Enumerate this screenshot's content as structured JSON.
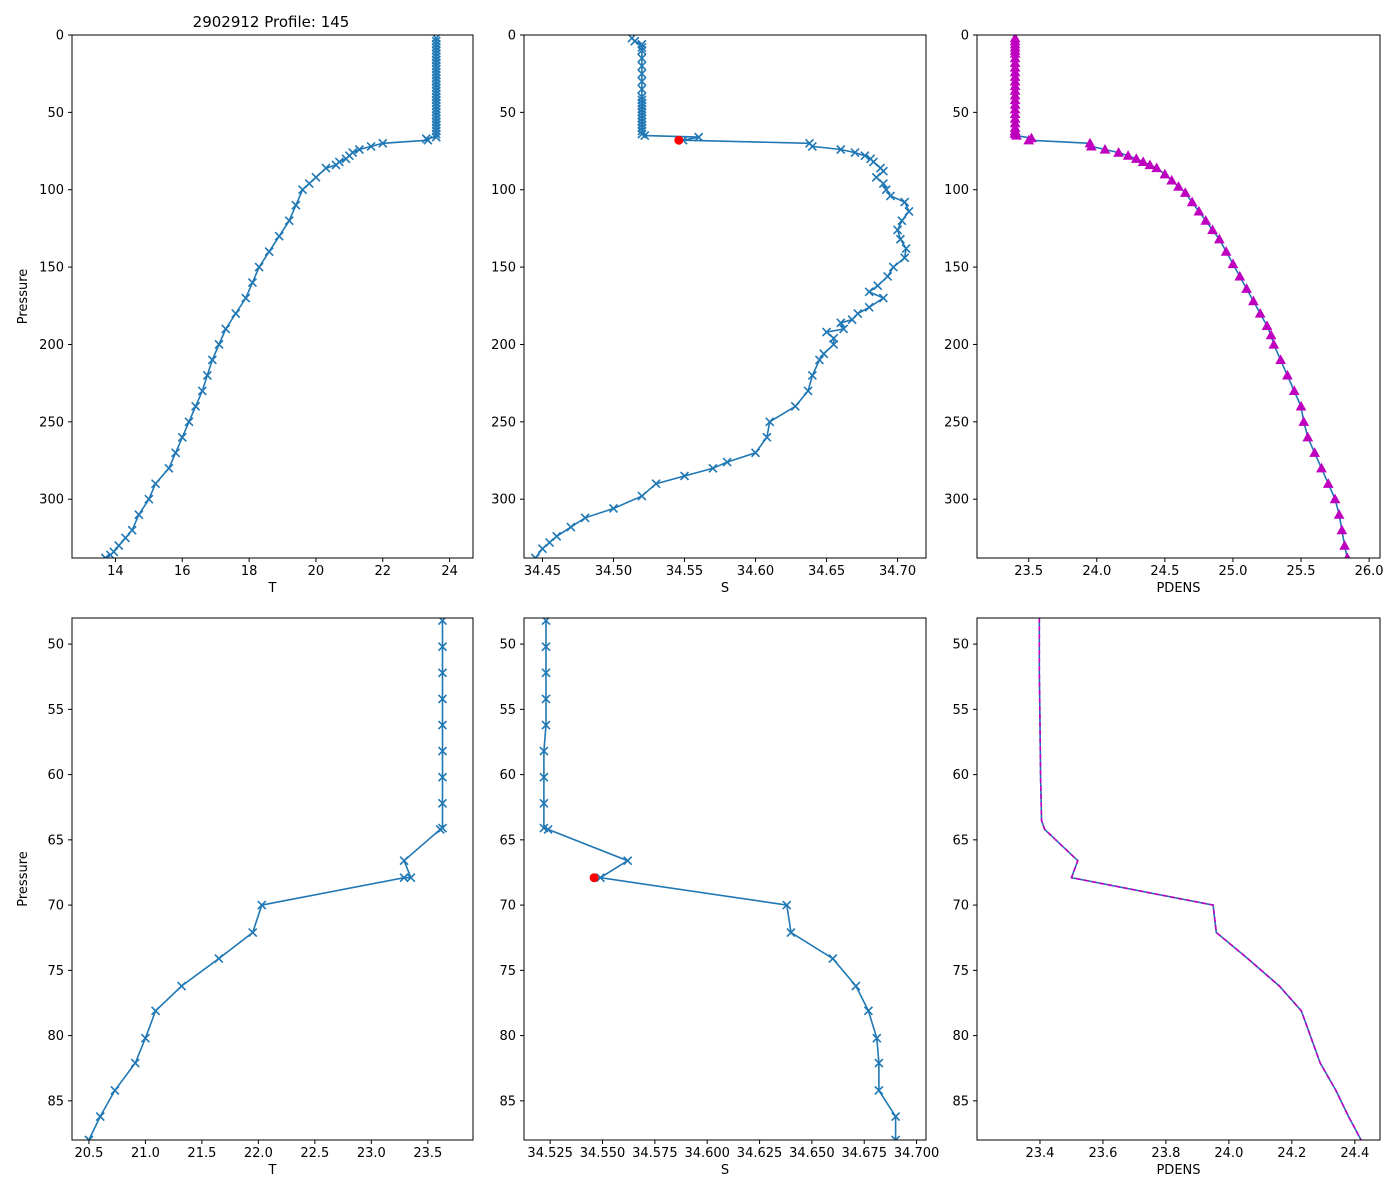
{
  "title": "2902912 Profile: 145",
  "colors": {
    "line": "#1f77b4",
    "marker_red": "#ff0000",
    "density": "#bf00bf",
    "axis": "#000000"
  },
  "chart_data": [
    {
      "id": "top-temp",
      "type": "line",
      "marker": "x",
      "xlabel": "T",
      "ylabel": "Pressure",
      "xlim": [
        12.7,
        24.7
      ],
      "ylim": [
        338,
        0
      ],
      "y_inverted": true,
      "xticks": [
        14,
        16,
        18,
        20,
        22,
        24
      ],
      "yticks": [
        0,
        50,
        100,
        150,
        200,
        250,
        300
      ],
      "series": [
        {
          "name": "T",
          "x": [
            23.6,
            23.6,
            23.6,
            23.6,
            23.6,
            23.6,
            23.6,
            23.6,
            23.6,
            23.6,
            23.6,
            23.6,
            23.6,
            23.6,
            23.6,
            23.6,
            23.6,
            23.6,
            23.6,
            23.6,
            23.6,
            23.6,
            23.6,
            23.6,
            23.6,
            23.6,
            23.6,
            23.6,
            23.6,
            23.6,
            23.6,
            23.6,
            23.6,
            23.3,
            23.35,
            22.0,
            21.65,
            21.3,
            21.1,
            21.0,
            20.9,
            20.7,
            20.6,
            20.3,
            20.0,
            19.8,
            19.6,
            19.4,
            19.2,
            18.9,
            18.6,
            18.3,
            18.1,
            17.9,
            17.6,
            17.3,
            17.1,
            16.9,
            16.75,
            16.6,
            16.4,
            16.2,
            16.0,
            15.8,
            15.6,
            15.2,
            15.0,
            14.7,
            14.5,
            14.3,
            14.1,
            13.95,
            13.85,
            13.7
          ],
          "y": [
            2,
            4,
            6,
            8,
            10,
            12,
            14,
            16,
            18,
            20,
            22,
            24,
            26,
            28,
            30,
            32,
            34,
            36,
            38,
            40,
            42,
            44,
            46,
            48,
            50,
            52,
            54,
            56,
            58,
            60,
            62,
            64,
            66,
            67,
            68,
            70,
            72,
            74,
            76,
            78,
            80,
            82,
            84,
            86,
            92,
            96,
            100,
            110,
            120,
            130,
            140,
            150,
            160,
            170,
            180,
            190,
            200,
            210,
            220,
            230,
            240,
            250,
            260,
            270,
            280,
            290,
            300,
            310,
            320,
            325,
            330,
            334,
            336,
            338
          ]
        }
      ]
    },
    {
      "id": "top-sal",
      "type": "line",
      "marker": "x",
      "xlabel": "S",
      "ylabel": "",
      "xlim": [
        34.437,
        34.72
      ],
      "ylim": [
        338,
        0
      ],
      "y_inverted": true,
      "xticks": [
        34.45,
        34.5,
        34.55,
        34.6,
        34.65,
        34.7
      ],
      "xtick_labels": [
        "34.45",
        "34.50",
        "34.55",
        "34.60",
        "34.65",
        "34.70"
      ],
      "yticks": [
        0,
        50,
        100,
        150,
        200,
        250,
        300
      ],
      "red_point": {
        "x": 34.546,
        "y": 68
      },
      "series": [
        {
          "name": "S",
          "x": [
            34.513,
            34.515,
            34.52,
            34.52,
            34.52,
            34.52,
            34.52,
            34.52,
            34.52,
            34.52,
            34.52,
            34.52,
            34.52,
            34.52,
            34.52,
            34.52,
            34.52,
            34.52,
            34.52,
            34.52,
            34.52,
            34.52,
            34.52,
            34.522,
            34.56,
            34.549,
            34.638,
            34.64,
            34.66,
            34.67,
            34.677,
            34.681,
            34.683,
            34.688,
            34.69,
            34.685,
            34.69,
            34.692,
            34.695,
            34.705,
            34.708,
            34.703,
            34.7,
            34.702,
            34.706,
            34.705,
            34.697,
            34.693,
            34.686,
            34.68,
            34.69,
            34.68,
            34.672,
            34.668,
            34.66,
            34.662,
            34.65,
            34.655,
            34.655,
            34.648,
            34.645,
            34.64,
            34.637,
            34.628,
            34.61,
            34.608,
            34.6,
            34.58,
            34.57,
            34.55,
            34.53,
            34.52,
            34.5,
            34.48,
            34.47,
            34.46,
            34.455,
            34.45,
            34.445
          ],
          "y": [
            2,
            4,
            6,
            8,
            10,
            15,
            20,
            25,
            30,
            35,
            40,
            42,
            44,
            46,
            48,
            50,
            52,
            54,
            56,
            58,
            60,
            62,
            64,
            65,
            66,
            68,
            70,
            72,
            74,
            76,
            78,
            80,
            82,
            86,
            88,
            92,
            96,
            100,
            104,
            108,
            114,
            120,
            126,
            132,
            138,
            144,
            150,
            156,
            162,
            166,
            170,
            176,
            180,
            184,
            186,
            190,
            192,
            196,
            200,
            206,
            210,
            220,
            230,
            240,
            250,
            260,
            270,
            276,
            280,
            285,
            290,
            298,
            306,
            312,
            318,
            324,
            328,
            332,
            338
          ]
        }
      ]
    },
    {
      "id": "top-dens",
      "type": "line",
      "marker": "triangle",
      "xlabel": "PDENS",
      "ylabel": "",
      "xlim": [
        23.12,
        26.08
      ],
      "ylim": [
        338,
        0
      ],
      "y_inverted": true,
      "xticks": [
        23.5,
        24.0,
        24.5,
        25.0,
        25.5,
        26.0
      ],
      "xtick_labels": [
        "23.5",
        "24.0",
        "24.5",
        "25.0",
        "25.5",
        "26.0"
      ],
      "yticks": [
        0,
        50,
        100,
        150,
        200,
        250,
        300
      ],
      "series": [
        {
          "name": "PDENS",
          "x": [
            23.4,
            23.4,
            23.4,
            23.4,
            23.4,
            23.4,
            23.4,
            23.4,
            23.4,
            23.4,
            23.4,
            23.4,
            23.4,
            23.4,
            23.4,
            23.4,
            23.4,
            23.4,
            23.4,
            23.4,
            23.4,
            23.4,
            23.4,
            23.4,
            23.4,
            23.41,
            23.52,
            23.5,
            23.95,
            23.96,
            24.06,
            24.16,
            24.23,
            24.29,
            24.34,
            24.39,
            24.44,
            24.5,
            24.55,
            24.6,
            24.65,
            24.7,
            24.75,
            24.8,
            24.85,
            24.9,
            24.95,
            25.0,
            25.05,
            25.1,
            25.15,
            25.2,
            25.25,
            25.28,
            25.3,
            25.35,
            25.4,
            25.45,
            25.5,
            25.52,
            25.55,
            25.6,
            25.65,
            25.7,
            25.75,
            25.78,
            25.8,
            25.82,
            25.84
          ],
          "y": [
            2,
            4,
            6,
            8,
            10,
            12,
            15,
            18,
            21,
            24,
            27,
            30,
            33,
            36,
            39,
            42,
            45,
            48,
            51,
            54,
            57,
            60,
            62,
            63,
            64,
            65,
            66.7,
            68,
            70,
            72,
            74,
            76,
            78,
            80,
            82,
            84,
            86,
            90,
            94,
            98,
            102,
            108,
            114,
            120,
            126,
            132,
            140,
            148,
            156,
            164,
            172,
            180,
            188,
            194,
            200,
            210,
            220,
            230,
            240,
            250,
            260,
            270,
            280,
            290,
            300,
            310,
            320,
            330,
            338
          ]
        }
      ]
    },
    {
      "id": "bot-temp",
      "type": "line",
      "marker": "x",
      "xlabel": "T",
      "ylabel": "Pressure",
      "xlim": [
        20.35,
        23.9
      ],
      "ylim": [
        88,
        48
      ],
      "y_inverted": true,
      "xticks": [
        20.5,
        21.0,
        21.5,
        22.0,
        22.5,
        23.0,
        23.5
      ],
      "xtick_labels": [
        "20.5",
        "21.0",
        "21.5",
        "22.0",
        "22.5",
        "23.0",
        "23.5"
      ],
      "yticks": [
        50,
        55,
        60,
        65,
        70,
        75,
        80,
        85
      ],
      "series": [
        {
          "name": "T",
          "x": [
            23.63,
            23.63,
            23.63,
            23.63,
            23.63,
            23.63,
            23.63,
            23.63,
            23.63,
            23.61,
            23.29,
            23.35,
            23.29,
            22.03,
            21.95,
            21.65,
            21.32,
            21.09,
            21.0,
            20.91,
            20.73,
            20.6,
            20.5
          ],
          "y": [
            48.2,
            50.2,
            52.2,
            54.2,
            56.2,
            58.2,
            60.2,
            62.2,
            64.1,
            64.2,
            66.6,
            67.9,
            67.9,
            70.0,
            72.1,
            74.1,
            76.2,
            78.1,
            80.2,
            82.1,
            84.2,
            86.2,
            88.0
          ]
        }
      ]
    },
    {
      "id": "bot-sal",
      "type": "line",
      "marker": "x",
      "xlabel": "S",
      "ylabel": "",
      "xlim": [
        34.5125,
        34.7045
      ],
      "ylim": [
        88,
        48
      ],
      "y_inverted": true,
      "xticks": [
        34.525,
        34.55,
        34.575,
        34.6,
        34.625,
        34.65,
        34.675,
        34.7
      ],
      "xtick_labels": [
        "34.525",
        "34.550",
        "34.575",
        "34.600",
        "34.625",
        "34.650",
        "34.675",
        "34.700"
      ],
      "yticks": [
        50,
        55,
        60,
        65,
        70,
        75,
        80,
        85
      ],
      "red_point": {
        "x": 34.546,
        "y": 67.9
      },
      "series": [
        {
          "name": "S",
          "x": [
            34.523,
            34.523,
            34.523,
            34.523,
            34.523,
            34.522,
            34.522,
            34.522,
            34.522,
            34.524,
            34.562,
            34.549,
            34.638,
            34.64,
            34.66,
            34.671,
            34.677,
            34.681,
            34.682,
            34.682,
            34.69,
            34.69
          ],
          "y": [
            48.2,
            50.2,
            52.2,
            54.2,
            56.2,
            58.2,
            60.2,
            62.2,
            64.1,
            64.2,
            66.6,
            67.9,
            70.0,
            72.1,
            74.1,
            76.2,
            78.1,
            80.2,
            82.1,
            84.2,
            86.2,
            88.0
          ]
        }
      ]
    },
    {
      "id": "bot-dens",
      "type": "line",
      "marker": "none",
      "xlabel": "PDENS",
      "ylabel": "",
      "xlim": [
        23.2,
        24.48
      ],
      "ylim": [
        88,
        48
      ],
      "y_inverted": true,
      "xticks": [
        23.4,
        23.6,
        23.8,
        24.0,
        24.2,
        24.4
      ],
      "xtick_labels": [
        "23.4",
        "23.6",
        "23.8",
        "24.0",
        "24.2",
        "24.4"
      ],
      "yticks": [
        50,
        55,
        60,
        65,
        70,
        75,
        80,
        85
      ],
      "series": [
        {
          "name": "PDENS",
          "x": [
            23.398,
            23.398,
            23.398,
            23.399,
            23.4,
            23.401,
            23.402,
            23.404,
            23.405,
            23.415,
            23.52,
            23.5,
            23.95,
            23.96,
            24.06,
            24.16,
            24.23,
            24.29,
            24.34,
            24.38,
            24.42
          ],
          "y": [
            48.0,
            50.2,
            52.2,
            54.2,
            56.2,
            58.2,
            60.2,
            62.2,
            63.5,
            64.2,
            66.6,
            67.9,
            70.0,
            72.1,
            74.1,
            76.2,
            78.1,
            82.1,
            84.2,
            86.2,
            88.0
          ]
        }
      ]
    }
  ]
}
